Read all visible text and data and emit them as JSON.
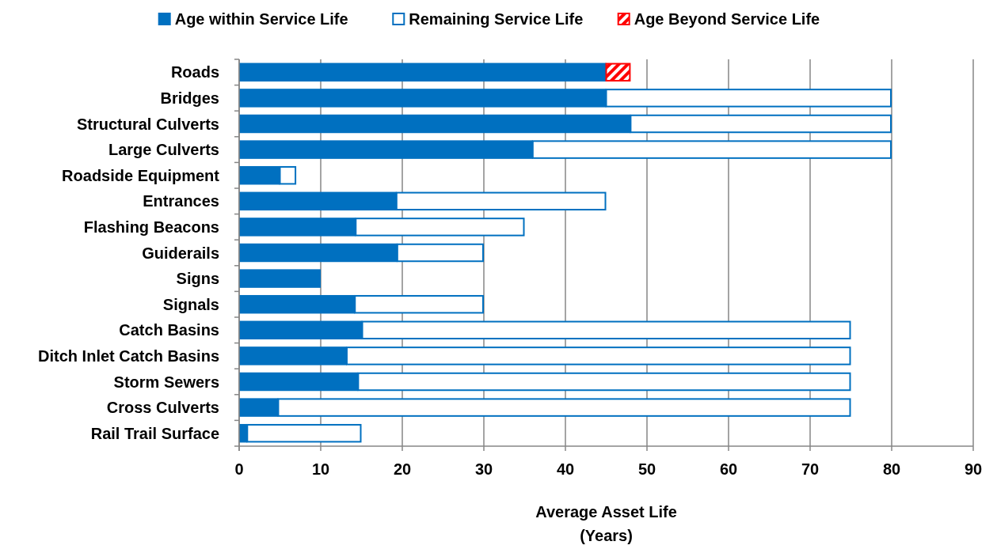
{
  "chart_data": {
    "type": "bar",
    "orientation": "horizontal",
    "stacked": true,
    "xlabel": "Average Asset Life\n(Years)",
    "categories": [
      "Roads",
      "Bridges",
      "Structural Culverts",
      "Large Culverts",
      "Roadside Equipment",
      "Entrances",
      "Flashing Beacons",
      "Guiderails",
      "Signs",
      "Signals",
      "Catch Basins",
      "Ditch Inlet Catch Basins",
      "Storm Sewers",
      "Cross Culverts",
      "Rail Trail Surface"
    ],
    "series": [
      {
        "name": "Age within Service Life",
        "color": "#0070c0",
        "values": [
          45,
          45,
          48,
          36,
          5,
          19.3,
          14.3,
          19.4,
          10,
          14.2,
          15.1,
          13.2,
          14.6,
          4.8,
          1
        ]
      },
      {
        "name": "Remaining Service Life",
        "color": "#0070c0",
        "values": [
          0,
          35,
          32,
          44,
          2,
          25.7,
          20.7,
          10.6,
          0,
          15.8,
          59.9,
          61.8,
          60.4,
          70.2,
          14
        ]
      },
      {
        "name": "Age Beyond Service Life",
        "color": "#ff0000",
        "values": [
          3,
          0,
          0,
          0,
          0,
          0,
          0,
          0,
          0,
          0,
          0,
          0,
          0,
          0,
          0
        ]
      }
    ],
    "xlim": [
      0,
      90
    ],
    "xticks": [
      0,
      10,
      20,
      30,
      40,
      50,
      60,
      70,
      80,
      90
    ],
    "grid": "x",
    "legend": "top"
  }
}
